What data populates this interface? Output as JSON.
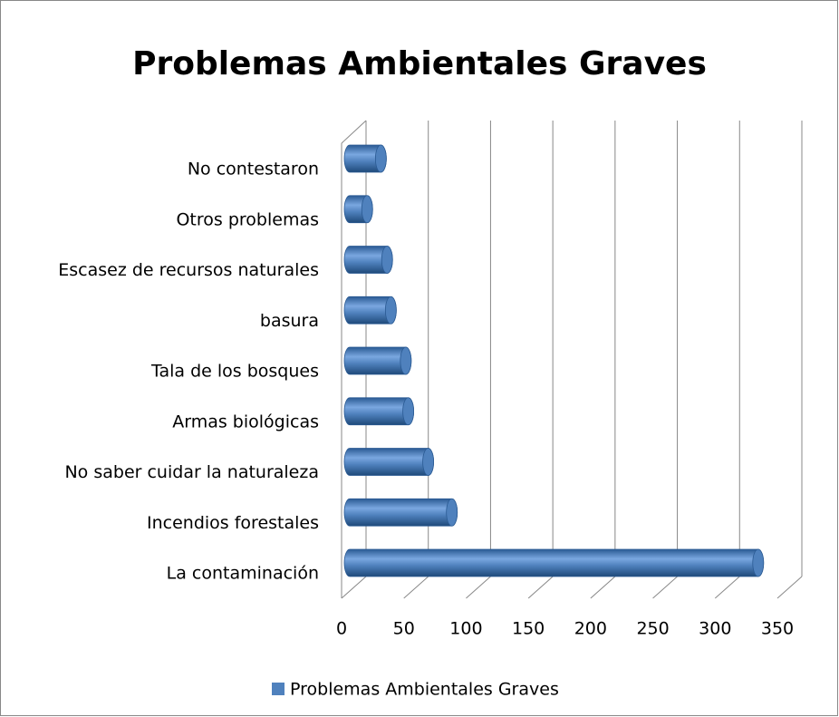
{
  "chart_data": {
    "type": "bar",
    "orientation": "horizontal",
    "title": "Problemas Ambientales Graves",
    "categories": [
      "No contestaron",
      "Otros problemas",
      "Escasez de recursos naturales",
      "basura",
      "Tala de los bosques",
      "Armas biológicas",
      "No saber cuidar la naturaleza",
      "Incendios forestales",
      "La contaminación"
    ],
    "series": [
      {
        "name": "Problemas Ambientales Graves",
        "color": "#4f81bd",
        "values": [
          25,
          14,
          30,
          33,
          45,
          47,
          63,
          82,
          328
        ]
      }
    ],
    "xlim": [
      0,
      350
    ],
    "xticks": [
      0,
      50,
      100,
      150,
      200,
      250,
      300,
      350
    ],
    "grid": true,
    "legend": "bottom"
  }
}
